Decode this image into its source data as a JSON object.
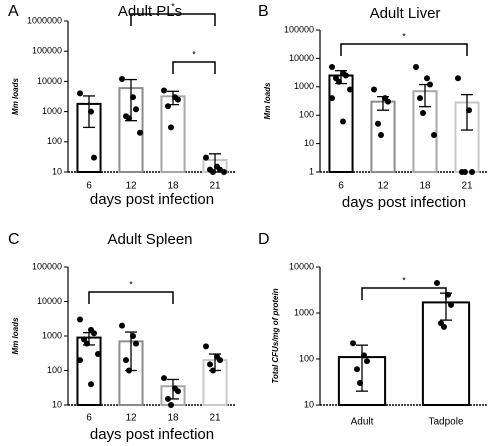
{
  "chart_data": [
    {
      "type": "bar",
      "panel": "A",
      "title": "Adult PLs",
      "ylabel": "Mm loads",
      "xlabel": "days post infection",
      "log_scale": true,
      "categories": [
        "6",
        "12",
        "18",
        "21"
      ],
      "values": [
        1800,
        6000,
        3200,
        25
      ],
      "errors": [
        1500,
        5500,
        1500,
        15
      ],
      "edge_colors": [
        "#000000",
        "#8c8c8c",
        "#a6a6a6",
        "#c8c8c8"
      ],
      "point_color": "#000000",
      "points": [
        [
          4000,
          1000,
          30
        ],
        [
          12000,
          3000,
          1200,
          700,
          600,
          200
        ],
        [
          5000,
          3000,
          2500,
          1500,
          300
        ],
        [
          30,
          15,
          12,
          12,
          10,
          10
        ]
      ],
      "ylim": [
        10,
        1000000
      ],
      "yticks": [
        10,
        100,
        1000,
        10000,
        100000,
        1000000
      ],
      "brackets": [
        {
          "from": "12",
          "to": "21",
          "label": "*"
        },
        {
          "from": "18",
          "to": "21",
          "label": "*"
        }
      ]
    },
    {
      "type": "bar",
      "panel": "B",
      "title": "Adult Liver",
      "ylabel": "Mm loads",
      "xlabel": "days post infection",
      "log_scale": true,
      "categories": [
        "6",
        "12",
        "18",
        "21"
      ],
      "values": [
        2500,
        300,
        700,
        280
      ],
      "errors": [
        1200,
        150,
        500,
        250
      ],
      "edge_colors": [
        "#000000",
        "#8c8c8c",
        "#a6a6a6",
        "#c8c8c8"
      ],
      "point_color": "#000000",
      "points": [
        [
          5000,
          3000,
          2500,
          2000,
          1500,
          800,
          400,
          60
        ],
        [
          800,
          400,
          300,
          50,
          20
        ],
        [
          5000,
          2000,
          1200,
          400,
          120,
          20
        ],
        [
          2000,
          150,
          1,
          1,
          1
        ]
      ],
      "ylim": [
        1,
        100000
      ],
      "yticks": [
        1,
        10,
        100,
        1000,
        10000,
        100000
      ],
      "brackets": [
        {
          "from": "6",
          "to": "21",
          "label": "*"
        }
      ]
    },
    {
      "type": "bar",
      "panel": "C",
      "title": "Adult Spleen",
      "ylabel": "Mm loads",
      "xlabel": "days post infection",
      "log_scale": true,
      "categories": [
        "6",
        "12",
        "18",
        "21"
      ],
      "values": [
        900,
        700,
        35,
        200
      ],
      "errors": [
        350,
        600,
        20,
        100
      ],
      "edge_colors": [
        "#000000",
        "#8c8c8c",
        "#a6a6a6",
        "#c8c8c8"
      ],
      "point_color": "#000000",
      "points": [
        [
          3000,
          1500,
          1200,
          800,
          600,
          300,
          200,
          40
        ],
        [
          2000,
          1000,
          600,
          200,
          100
        ],
        [
          60,
          30,
          25,
          15,
          10
        ],
        [
          500,
          250,
          200,
          150,
          100
        ]
      ],
      "ylim": [
        10,
        100000
      ],
      "yticks": [
        10,
        100,
        1000,
        10000,
        100000
      ],
      "brackets": [
        {
          "from": "6",
          "to": "18",
          "label": "*"
        }
      ]
    },
    {
      "type": "bar",
      "panel": "D",
      "ylabel": "Total CFUs/mg of protein",
      "log_scale": true,
      "categories": [
        "Adult",
        "Tadpole"
      ],
      "values": [
        110,
        1700
      ],
      "errors": [
        90,
        1000
      ],
      "edge_colors": [
        "#000000",
        "#000000"
      ],
      "point_color": "#000000",
      "points": [
        [
          220,
          120,
          90,
          60,
          30
        ],
        [
          4500,
          2500,
          1500,
          600,
          500
        ]
      ],
      "ylim": [
        10,
        10000
      ],
      "yticks": [
        10,
        100,
        1000,
        10000
      ],
      "brackets": [
        {
          "from": "Adult",
          "to": "Tadpole",
          "label": "*"
        }
      ]
    }
  ]
}
